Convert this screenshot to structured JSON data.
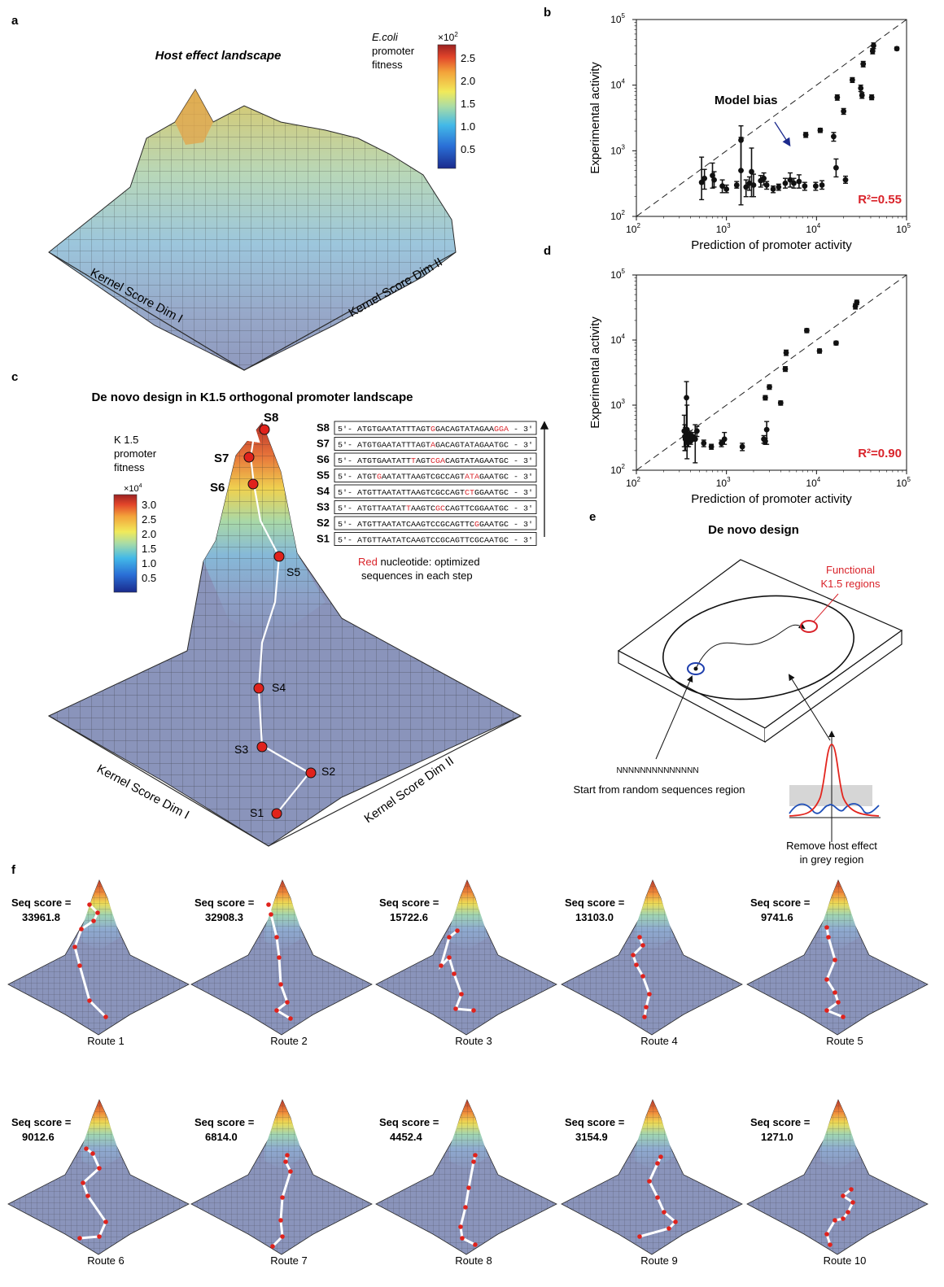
{
  "panels": {
    "a": {
      "letter": "a",
      "title": "Host effect landscape",
      "colorbar_label": [
        "E.coli",
        "promoter",
        "fitness"
      ],
      "colorbar_multiplier": "×10",
      "colorbar_multiplier_exp": "2",
      "colorbar_ticks": [
        "2.5",
        "2.0",
        "1.5",
        "1.0",
        "0.5"
      ],
      "axis_dim1": "Kernel Score Dim I",
      "axis_dim2": "Kernel Score Dim II"
    },
    "b": {
      "letter": "b",
      "annotation": "Model bias"
    },
    "c": {
      "letter": "c",
      "title": "De novo design in K1.5 orthogonal promoter landscape",
      "colorbar_label": [
        "K 1.5",
        "promoter",
        "fitness"
      ],
      "colorbar_multiplier": "×10",
      "colorbar_multiplier_exp": "4",
      "colorbar_ticks": [
        "3.0",
        "2.5",
        "2.0",
        "1.5",
        "1.0",
        "0.5"
      ],
      "axis_dim1": "Kernel Score Dim I",
      "axis_dim2": "Kernel Score Dim II",
      "steps": [
        "S1",
        "S2",
        "S3",
        "S4",
        "S5",
        "S6",
        "S7",
        "S8"
      ],
      "sequences": [
        {
          "label": "S8",
          "parts": [
            [
              "5'- ATGTGAATATTTAGT",
              0
            ],
            [
              "G",
              1
            ],
            [
              "GACAGTATAGAA",
              0
            ],
            [
              "GGA",
              1
            ],
            [
              " - 3'",
              0
            ]
          ]
        },
        {
          "label": "S7",
          "parts": [
            [
              "5'- ATGTGAATATTTAGT",
              0
            ],
            [
              "A",
              1
            ],
            [
              "GACAGTATAGAATGC - 3'",
              0
            ]
          ]
        },
        {
          "label": "S6",
          "parts": [
            [
              "5'- ATGTGAATATT",
              0
            ],
            [
              "T",
              1
            ],
            [
              "AGT",
              0
            ],
            [
              "CGA",
              1
            ],
            [
              "CAGTATAGAATGC - 3'",
              0
            ]
          ]
        },
        {
          "label": "S5",
          "parts": [
            [
              "5'- ATGT",
              0
            ],
            [
              "G",
              1
            ],
            [
              "AATATTAAGTCGCCAGT",
              0
            ],
            [
              "ATA",
              1
            ],
            [
              "GAATGC - 3'",
              0
            ]
          ]
        },
        {
          "label": "S4",
          "parts": [
            [
              "5'- ATGTTAATATTAAGTCGCCAGT",
              0
            ],
            [
              "CT",
              1
            ],
            [
              "GGAATGC - 3'",
              0
            ]
          ]
        },
        {
          "label": "S3",
          "parts": [
            [
              "5'- ATGTTAATAT",
              0
            ],
            [
              "T",
              1
            ],
            [
              "AAGTC",
              0
            ],
            [
              "GC",
              1
            ],
            [
              "CAGTTCGGAATGC - 3'",
              0
            ]
          ]
        },
        {
          "label": "S2",
          "parts": [
            [
              "5'- ATGTTAATATCAAGTCCGCAGTTC",
              0
            ],
            [
              "G",
              1
            ],
            [
              "GAATGC - 3'",
              0
            ]
          ]
        },
        {
          "label": "S1",
          "parts": [
            [
              "5'- ATGTTAATATCAAGTCCGCAGTTCGCAATGC - 3'",
              0
            ]
          ]
        }
      ],
      "legend_red_word": "Red",
      "legend_rest": " nucleotide: optimized",
      "legend_line2": "sequences in each step"
    },
    "d": {
      "letter": "d"
    },
    "e": {
      "letter": "e",
      "title": "De novo design",
      "functional_label": [
        "Functional",
        "K1.5 regions"
      ],
      "random_seq": "NNNNNNNNNNNNNN",
      "start_label": "Start from random sequences region",
      "remove_label": [
        "Remove host effect",
        "in grey region"
      ]
    },
    "f": {
      "letter": "f",
      "score_label": "Seq score =",
      "routes": [
        {
          "name": "Route 1",
          "score": "33961.8"
        },
        {
          "name": "Route 2",
          "score": "32908.3"
        },
        {
          "name": "Route 3",
          "score": "15722.6"
        },
        {
          "name": "Route 4",
          "score": "13103.0"
        },
        {
          "name": "Route 5",
          "score": "9741.6"
        },
        {
          "name": "Route 6",
          "score": "9012.6"
        },
        {
          "name": "Route 7",
          "score": "6814.0"
        },
        {
          "name": "Route 8",
          "score": "4452.4"
        },
        {
          "name": "Route 9",
          "score": "3154.9"
        },
        {
          "name": "Route 10",
          "score": "1271.0"
        }
      ]
    }
  },
  "chart_data": [
    {
      "type": "scatter",
      "panel": "b",
      "xlabel": "Prediction of promoter activity",
      "ylabel": "Experimental activity",
      "xscale": "log",
      "yscale": "log",
      "xlim": [
        100,
        100000
      ],
      "ylim": [
        100,
        100000
      ],
      "xticks": [
        "10^2",
        "10^3",
        "10^4",
        "10^5"
      ],
      "yticks": [
        "10^2",
        "10^3",
        "10^4",
        "10^5"
      ],
      "r2": "R²=0.55",
      "diagonal": true,
      "points": [
        {
          "x": 530,
          "y": 330,
          "lo": 180,
          "hi": 800
        },
        {
          "x": 570,
          "y": 380,
          "lo": 260,
          "hi": 520
        },
        {
          "x": 700,
          "y": 420,
          "lo": 270,
          "hi": 650
        },
        {
          "x": 730,
          "y": 360,
          "lo": 280,
          "hi": 480
        },
        {
          "x": 900,
          "y": 290,
          "lo": 230,
          "hi": 360
        },
        {
          "x": 1000,
          "y": 260,
          "lo": 230,
          "hi": 300
        },
        {
          "x": 1300,
          "y": 300,
          "lo": 270,
          "hi": 340
        },
        {
          "x": 1450,
          "y": 1450,
          "lo": 500,
          "hi": 2400
        },
        {
          "x": 1450,
          "y": 500,
          "lo": 150,
          "hi": 1600
        },
        {
          "x": 1650,
          "y": 280,
          "lo": 200,
          "hi": 360
        },
        {
          "x": 1800,
          "y": 320,
          "lo": 250,
          "hi": 400
        },
        {
          "x": 1900,
          "y": 480,
          "lo": 200,
          "hi": 1100
        },
        {
          "x": 2000,
          "y": 300,
          "lo": 200,
          "hi": 440
        },
        {
          "x": 2400,
          "y": 350,
          "lo": 280,
          "hi": 420
        },
        {
          "x": 2600,
          "y": 380,
          "lo": 300,
          "hi": 460
        },
        {
          "x": 2800,
          "y": 300,
          "lo": 260,
          "hi": 340
        },
        {
          "x": 3300,
          "y": 260,
          "lo": 230,
          "hi": 290
        },
        {
          "x": 3800,
          "y": 280,
          "lo": 250,
          "hi": 310
        },
        {
          "x": 4500,
          "y": 320,
          "lo": 270,
          "hi": 380
        },
        {
          "x": 5100,
          "y": 360,
          "lo": 280,
          "hi": 460
        },
        {
          "x": 5600,
          "y": 320,
          "lo": 270,
          "hi": 380
        },
        {
          "x": 6400,
          "y": 340,
          "lo": 270,
          "hi": 430
        },
        {
          "x": 7400,
          "y": 290,
          "lo": 250,
          "hi": 330
        },
        {
          "x": 7600,
          "y": 1750,
          "lo": 1600,
          "hi": 1900
        },
        {
          "x": 9800,
          "y": 290,
          "lo": 250,
          "hi": 330
        },
        {
          "x": 11000,
          "y": 2050,
          "lo": 1900,
          "hi": 2200
        },
        {
          "x": 11500,
          "y": 300,
          "lo": 260,
          "hi": 350
        },
        {
          "x": 15500,
          "y": 1650,
          "lo": 1400,
          "hi": 1900
        },
        {
          "x": 16500,
          "y": 550,
          "lo": 400,
          "hi": 750
        },
        {
          "x": 17000,
          "y": 6500,
          "lo": 5900,
          "hi": 7100
        },
        {
          "x": 20000,
          "y": 4000,
          "lo": 3600,
          "hi": 4400
        },
        {
          "x": 21000,
          "y": 360,
          "lo": 320,
          "hi": 410
        },
        {
          "x": 25000,
          "y": 12000,
          "lo": 11000,
          "hi": 13000
        },
        {
          "x": 31000,
          "y": 9000,
          "lo": 8000,
          "hi": 10000
        },
        {
          "x": 32000,
          "y": 7000,
          "lo": 6300,
          "hi": 7700
        },
        {
          "x": 33000,
          "y": 21000,
          "lo": 19000,
          "hi": 23000
        },
        {
          "x": 41000,
          "y": 6500,
          "lo": 6000,
          "hi": 7100
        },
        {
          "x": 42000,
          "y": 33000,
          "lo": 30000,
          "hi": 36000
        },
        {
          "x": 43000,
          "y": 40000,
          "lo": 36000,
          "hi": 44000
        },
        {
          "x": 78000,
          "y": 36000,
          "lo": 34000,
          "hi": 38000
        }
      ]
    },
    {
      "type": "scatter",
      "panel": "d",
      "xlabel": "Prediction of promoter activity",
      "ylabel": "Experimental activity",
      "xscale": "log",
      "yscale": "log",
      "xlim": [
        100,
        100000
      ],
      "ylim": [
        100,
        100000
      ],
      "xticks": [
        "10^2",
        "10^3",
        "10^4",
        "10^5"
      ],
      "yticks": [
        "10^2",
        "10^3",
        "10^4",
        "10^5"
      ],
      "r2": "R²=0.90",
      "diagonal": true,
      "points": [
        {
          "x": 340,
          "y": 400,
          "lo": 230,
          "hi": 700
        },
        {
          "x": 345,
          "y": 330,
          "lo": 200,
          "hi": 500
        },
        {
          "x": 350,
          "y": 300,
          "lo": 200,
          "hi": 450
        },
        {
          "x": 360,
          "y": 1300,
          "lo": 250,
          "hi": 2300
        },
        {
          "x": 365,
          "y": 420,
          "lo": 150,
          "hi": 1000
        },
        {
          "x": 370,
          "y": 270,
          "lo": 230,
          "hi": 310
        },
        {
          "x": 380,
          "y": 300,
          "lo": 230,
          "hi": 380
        },
        {
          "x": 390,
          "y": 350,
          "lo": 300,
          "hi": 400
        },
        {
          "x": 400,
          "y": 280,
          "lo": 250,
          "hi": 310
        },
        {
          "x": 420,
          "y": 330,
          "lo": 280,
          "hi": 380
        },
        {
          "x": 450,
          "y": 300,
          "lo": 130,
          "hi": 500
        },
        {
          "x": 470,
          "y": 400,
          "lo": 330,
          "hi": 470
        },
        {
          "x": 560,
          "y": 260,
          "lo": 230,
          "hi": 290
        },
        {
          "x": 680,
          "y": 230,
          "lo": 210,
          "hi": 250
        },
        {
          "x": 880,
          "y": 260,
          "lo": 230,
          "hi": 290
        },
        {
          "x": 950,
          "y": 300,
          "lo": 250,
          "hi": 380
        },
        {
          "x": 1500,
          "y": 230,
          "lo": 200,
          "hi": 260
        },
        {
          "x": 2600,
          "y": 300,
          "lo": 260,
          "hi": 340
        },
        {
          "x": 2700,
          "y": 280,
          "lo": 250,
          "hi": 310
        },
        {
          "x": 2800,
          "y": 420,
          "lo": 250,
          "hi": 560
        },
        {
          "x": 2700,
          "y": 1300,
          "lo": 1200,
          "hi": 1400
        },
        {
          "x": 3000,
          "y": 1900,
          "lo": 1750,
          "hi": 2050
        },
        {
          "x": 4000,
          "y": 1080,
          "lo": 1000,
          "hi": 1160
        },
        {
          "x": 4500,
          "y": 3600,
          "lo": 3300,
          "hi": 3900
        },
        {
          "x": 4600,
          "y": 6400,
          "lo": 5800,
          "hi": 7000
        },
        {
          "x": 7800,
          "y": 14000,
          "lo": 13000,
          "hi": 15000
        },
        {
          "x": 10800,
          "y": 6800,
          "lo": 6300,
          "hi": 7300
        },
        {
          "x": 16500,
          "y": 9000,
          "lo": 8400,
          "hi": 9600
        },
        {
          "x": 27000,
          "y": 33000,
          "lo": 30000,
          "hi": 36000
        },
        {
          "x": 28000,
          "y": 38000,
          "lo": 35000,
          "hi": 41000
        }
      ]
    }
  ]
}
